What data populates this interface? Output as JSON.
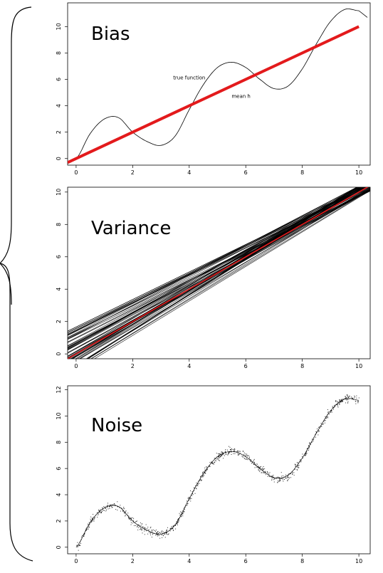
{
  "chart_data": [
    {
      "type": "line",
      "title": "Bias",
      "xlim": [
        -0.3,
        10.4
      ],
      "ylim": [
        -0.5,
        11.8
      ],
      "x_ticks": [
        "0",
        "2",
        "4",
        "6",
        "8",
        "10"
      ],
      "y_ticks": [
        "0",
        "2",
        "4",
        "6",
        "8",
        "10"
      ],
      "annotations": [
        "true function",
        "mean h"
      ],
      "series": [
        {
          "name": "true function",
          "color": "#000000",
          "x": [
            0,
            0.5,
            1,
            1.5,
            2,
            2.5,
            3,
            3.5,
            4,
            4.5,
            5,
            5.5,
            6,
            6.5,
            7,
            7.5,
            8,
            8.5,
            9,
            9.5,
            10
          ],
          "y": [
            0.0,
            1.9,
            3.0,
            3.1,
            2.0,
            1.3,
            1.0,
            1.7,
            3.7,
            5.6,
            6.9,
            7.3,
            6.9,
            6.0,
            5.3,
            5.5,
            6.8,
            8.7,
            10.4,
            11.3,
            11.2
          ]
        },
        {
          "name": "mean h",
          "color": "#e31a1c",
          "x": [
            -0.3,
            10.0
          ],
          "y": [
            -0.3,
            10.0
          ]
        }
      ]
    },
    {
      "type": "line",
      "title": "Variance",
      "xlim": [
        -0.3,
        10.4
      ],
      "ylim": [
        -0.3,
        10.3
      ],
      "x_ticks": [
        "0",
        "2",
        "4",
        "6",
        "8",
        "10"
      ],
      "y_ticks": [
        "0",
        "2",
        "4",
        "6",
        "8",
        "10"
      ],
      "band": {
        "intercept_range": [
          -1.0,
          1.7
        ],
        "slope_range": [
          0.85,
          1.15
        ],
        "line_count": 60,
        "color": "#000000"
      },
      "series": [
        {
          "color": "#e31a1c",
          "x": [
            -0.3,
            10.4
          ],
          "y": [
            -0.3,
            10.4
          ]
        }
      ]
    },
    {
      "type": "scatter",
      "title": "Noise",
      "xlim": [
        -0.3,
        10.4
      ],
      "ylim": [
        -0.5,
        12.3
      ],
      "x_ticks": [
        "0",
        "2",
        "4",
        "6",
        "8",
        "10"
      ],
      "y_ticks": [
        "0",
        "2",
        "4",
        "6",
        "8",
        "10",
        "12"
      ],
      "noise_sd": 0.15,
      "point_count": 900,
      "series": [
        {
          "color": "#000000",
          "x": [
            0,
            0.5,
            1,
            1.5,
            2,
            2.5,
            3,
            3.5,
            4,
            4.5,
            5,
            5.5,
            6,
            6.5,
            7,
            7.5,
            8,
            8.5,
            9,
            9.5,
            10
          ],
          "y": [
            0.0,
            1.9,
            3.0,
            3.1,
            2.0,
            1.3,
            1.0,
            1.7,
            3.7,
            5.6,
            6.9,
            7.3,
            6.9,
            6.0,
            5.3,
            5.5,
            6.8,
            8.7,
            10.4,
            11.3,
            11.2
          ]
        }
      ]
    }
  ]
}
